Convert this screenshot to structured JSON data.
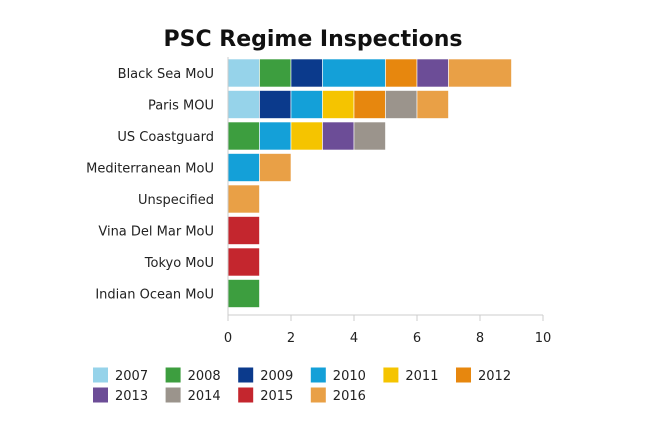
{
  "chart_data": {
    "type": "bar",
    "orientation": "horizontal",
    "stacked": true,
    "title": "PSC Regime Inspections",
    "xlabel": "",
    "ylabel": "",
    "xlim": [
      0,
      10
    ],
    "xticks": [
      0,
      2,
      4,
      6,
      8,
      10
    ],
    "grid": false,
    "legend_position": "bottom",
    "categories": [
      "Black Sea MoU",
      "Paris MOU",
      "US Coastguard",
      "Mediterranean MoU",
      "Unspecified",
      "Vina Del Mar MoU",
      "Tokyo MoU",
      "Indian Ocean MoU"
    ],
    "series": [
      {
        "name": "2007",
        "color": "#96d3ea",
        "values": [
          1,
          1,
          0,
          0,
          0,
          0,
          0,
          0
        ]
      },
      {
        "name": "2008",
        "color": "#3d9e3f",
        "values": [
          1,
          0,
          1,
          0,
          0,
          0,
          0,
          1
        ]
      },
      {
        "name": "2009",
        "color": "#0b3a8c",
        "values": [
          1,
          1,
          0,
          0,
          0,
          0,
          0,
          0
        ]
      },
      {
        "name": "2010",
        "color": "#14a0d8",
        "values": [
          2,
          1,
          1,
          1,
          0,
          0,
          0,
          0
        ]
      },
      {
        "name": "2011",
        "color": "#f5c400",
        "values": [
          0,
          1,
          1,
          0,
          0,
          0,
          0,
          0
        ]
      },
      {
        "name": "2012",
        "color": "#e7870e",
        "values": [
          1,
          1,
          0,
          0,
          0,
          0,
          0,
          0
        ]
      },
      {
        "name": "2013",
        "color": "#6c4d97",
        "values": [
          1,
          0,
          1,
          0,
          0,
          0,
          0,
          0
        ]
      },
      {
        "name": "2014",
        "color": "#9b948c",
        "values": [
          0,
          1,
          1,
          0,
          0,
          0,
          0,
          0
        ]
      },
      {
        "name": "2015",
        "color": "#c4262e",
        "values": [
          0,
          0,
          0,
          0,
          0,
          1,
          1,
          0
        ]
      },
      {
        "name": "2016",
        "color": "#e9a046",
        "values": [
          2,
          1,
          0,
          1,
          1,
          0,
          0,
          0
        ]
      }
    ]
  }
}
